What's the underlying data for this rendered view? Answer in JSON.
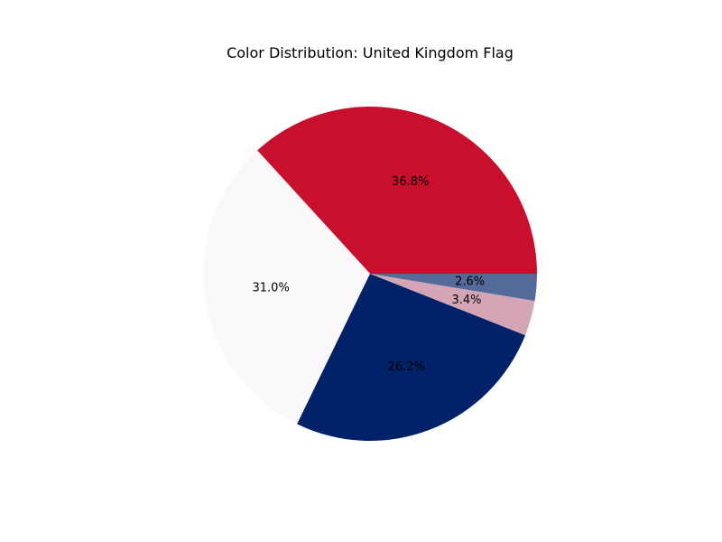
{
  "chart_data": {
    "type": "pie",
    "title": "Color Distribution: United Kingdom Flag",
    "start_angle_deg": 0,
    "direction": "counterclockwise",
    "legend": "none",
    "slices": [
      {
        "value": 36.8,
        "label": "36.8%",
        "color": "#c8102e"
      },
      {
        "value": 31.0,
        "label": "31.0%",
        "color": "#fbf8f9"
      },
      {
        "value": 26.2,
        "label": "26.2%",
        "color": "#012169"
      },
      {
        "value": 3.4,
        "label": "3.4%",
        "color": "#d4a6b5"
      },
      {
        "value": 2.6,
        "label": "2.6%",
        "color": "#536a9b"
      }
    ]
  }
}
